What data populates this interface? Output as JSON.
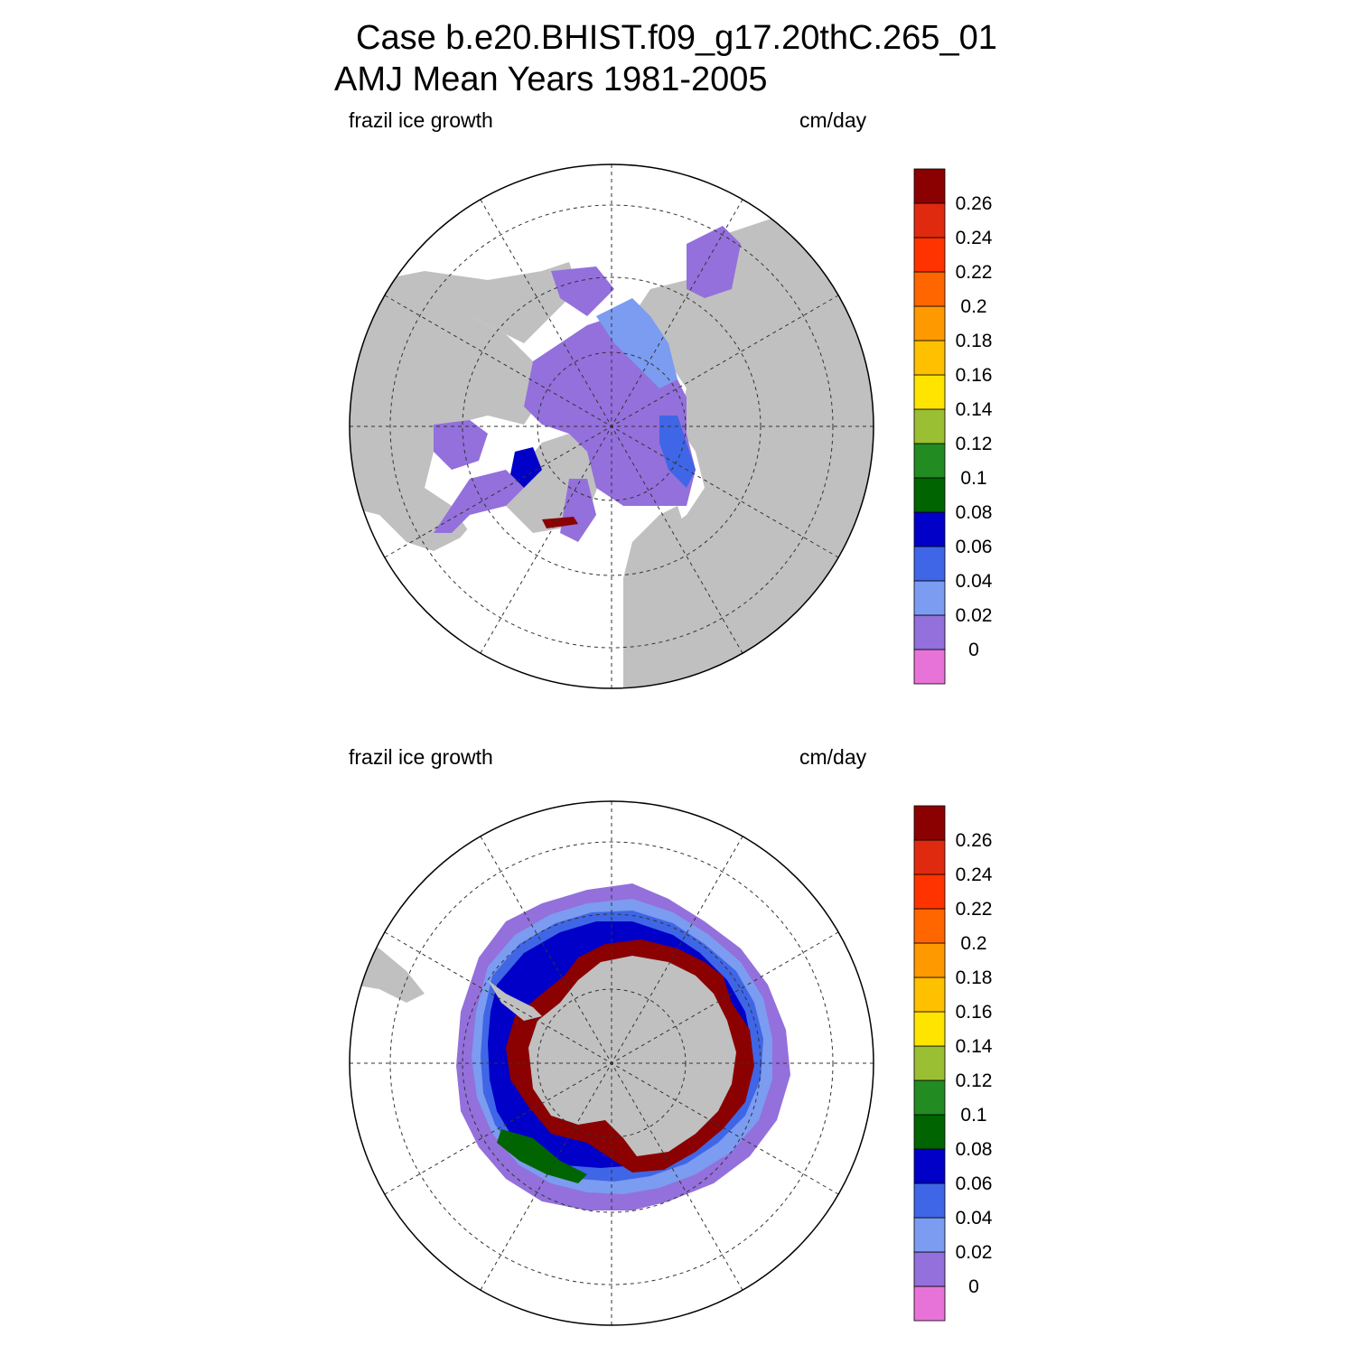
{
  "title": {
    "case": "Case b.e20.BHIST.f09_g17.20thC.265_01",
    "period": "AMJ Mean   Years 1981-2005"
  },
  "colorbar": {
    "colors": [
      "#e873d8",
      "#9370db",
      "#7b9cf0",
      "#3f66e6",
      "#0000c8",
      "#006400",
      "#228b22",
      "#9bbf33",
      "#ffe400",
      "#ffc000",
      "#ff9900",
      "#ff6600",
      "#ff3300",
      "#e02a10",
      "#8b0000"
    ],
    "labels": [
      "0",
      "0.02",
      "0.04",
      "0.06",
      "0.08",
      "0.1",
      "0.12",
      "0.14",
      "0.16",
      "0.18",
      "0.2",
      "0.22",
      "0.24",
      "0.26"
    ]
  },
  "panels": [
    {
      "field": "frazil ice growth",
      "units": "cm/day",
      "hemisphere": "north"
    },
    {
      "field": "frazil ice growth",
      "units": "cm/day",
      "hemisphere": "south"
    }
  ],
  "map_colors": {
    "land": "#c0c0c0",
    "no_data": "#ffffff",
    "grid": "#333333"
  }
}
